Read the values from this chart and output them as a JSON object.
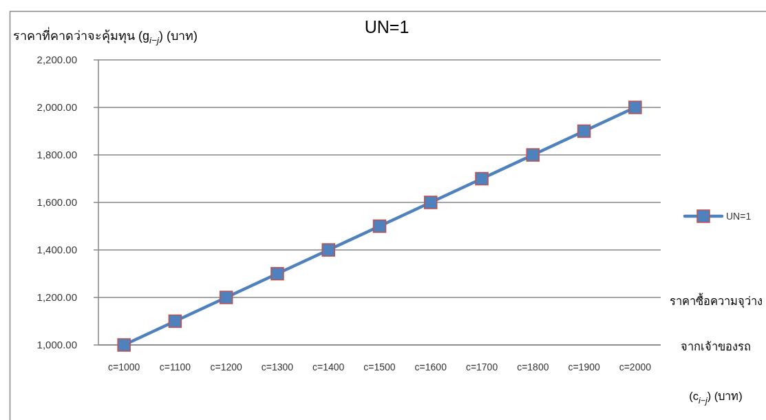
{
  "chart_data": {
    "type": "line",
    "title": "UN=1",
    "ylabel": "ราคาที่คาดว่าจะคุ้มทุน (g$_{i−j}$) (บาท)",
    "xlabel": "ราคาซื้อความจุว่าง\nจากเจ้าของรถ\n(c$_{i−j}$) (บาท)",
    "categories": [
      "c=1000",
      "c=1100",
      "c=1200",
      "c=1300",
      "c=1400",
      "c=1500",
      "c=1600",
      "c=1700",
      "c=1800",
      "c=1900",
      "c=2000"
    ],
    "series": [
      {
        "name": "UN=1",
        "color": "#4f81bd",
        "values": [
          1000,
          1100,
          1200,
          1300,
          1400,
          1500,
          1600,
          1700,
          1800,
          1900,
          2000
        ]
      }
    ],
    "ylim": [
      1000,
      2200
    ],
    "yticks": [
      {
        "value": 1000,
        "label": "1,000.00"
      },
      {
        "value": 1200,
        "label": "1,200.00"
      },
      {
        "value": 1400,
        "label": "1,400.00"
      },
      {
        "value": 1600,
        "label": "1,600.00"
      },
      {
        "value": 1800,
        "label": "1,800.00"
      },
      {
        "value": 2000,
        "label": "2,000.00"
      },
      {
        "value": 2200,
        "label": "2,200.00"
      }
    ],
    "grid": "y",
    "legend": "right",
    "marker": "square",
    "line_style": "solid"
  }
}
